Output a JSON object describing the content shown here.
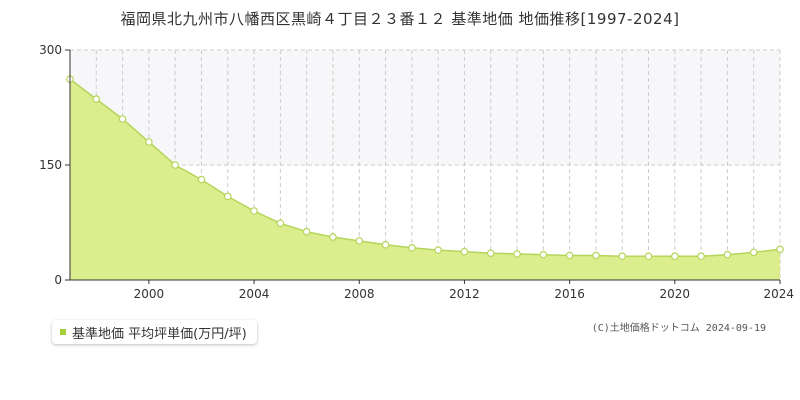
{
  "title": "福岡県北九州市八幡西区黒崎４丁目２３番１２ 基準地価 地価推移[1997-2024]",
  "legend_label": "基準地価 平均坪単価(万円/坪)",
  "copyright": "(C)土地価格ドットコム 2024-09-19",
  "colors": {
    "fill": "#dbed8c",
    "line": "#b5d55a",
    "marker_fill": "#ffffff",
    "marker_stroke": "#b5d55a",
    "legend_swatch": "#a6cf3a",
    "band": "#f7f7fa",
    "grid": "#cccccc",
    "axis": "#333333"
  },
  "chart_data": {
    "type": "area",
    "x": [
      1997,
      1998,
      1999,
      2000,
      2001,
      2002,
      2003,
      2004,
      2005,
      2006,
      2007,
      2008,
      2009,
      2010,
      2011,
      2012,
      2013,
      2014,
      2015,
      2016,
      2017,
      2018,
      2019,
      2020,
      2021,
      2022,
      2023,
      2024
    ],
    "series": [
      {
        "name": "基準地価 平均坪単価(万円/坪)",
        "values": [
          262,
          236,
          210,
          180,
          150,
          131,
          109,
          90,
          74,
          63,
          56,
          51,
          46,
          42,
          39,
          37,
          35,
          34,
          33,
          32,
          32,
          31,
          31,
          31,
          31,
          33,
          36,
          40
        ]
      }
    ],
    "xlim": [
      1997,
      2024
    ],
    "ylim": [
      0,
      300
    ],
    "y_ticks": [
      0,
      150,
      300
    ],
    "x_tick_labels": [
      2000,
      2004,
      2008,
      2012,
      2016,
      2020,
      2024
    ],
    "grid": true,
    "legend_position": "bottom-left"
  }
}
